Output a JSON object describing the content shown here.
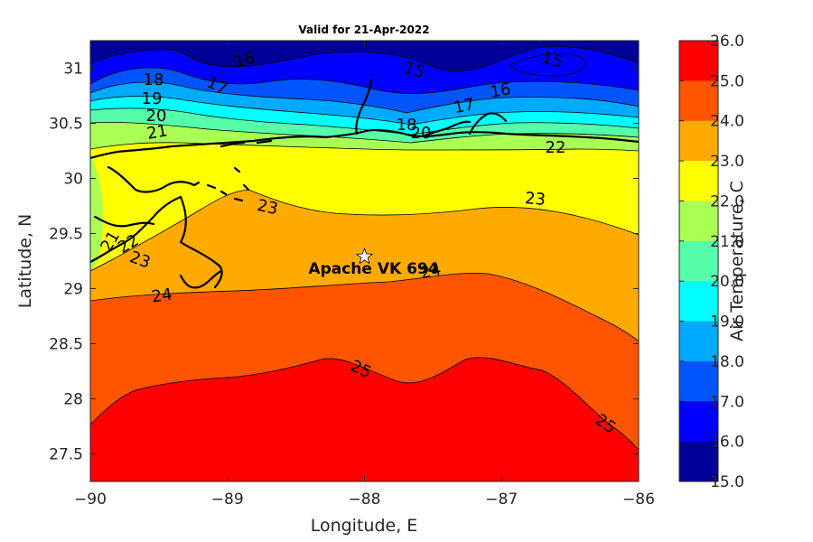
{
  "title": "Valid for 21-Apr-2022",
  "xlabel": "Longitude, E",
  "ylabel": "Latitude, N",
  "colorbar_label": "Air Temperature, C",
  "x_ticks": [
    "-90",
    "-89",
    "-88",
    "-87",
    "-86"
  ],
  "y_ticks": [
    "31",
    "30.5",
    "30",
    "29.5",
    "29",
    "28.5",
    "28",
    "27.5"
  ],
  "colorbar_ticks": [
    "26.0",
    "25.0",
    "24.0",
    "23.0",
    "22.0",
    "21.0",
    "20.0",
    "19.0",
    "18.0",
    "17.0",
    "16.0",
    "15.0"
  ],
  "colorbar_colors": [
    "#ff0000",
    "#ff5500",
    "#ffaa00",
    "#ffff00",
    "#aaff55",
    "#55ffaa",
    "#00ffff",
    "#00aaff",
    "#0055ff",
    "#0000ff",
    "#000099"
  ],
  "station": {
    "name": "Apache VK 694",
    "lon": -88.0,
    "lat": 29.29
  },
  "contour_labels": [
    "15",
    "15",
    "16",
    "16",
    "17",
    "17",
    "18",
    "18",
    "19",
    "20",
    "20",
    "21",
    "21",
    "22",
    "22",
    "23",
    "23",
    "23",
    "24",
    "24",
    "25",
    "25"
  ],
  "chart_data": {
    "type": "heatmap",
    "variable": "Air Temperature, C",
    "xlim": [
      -90,
      -86
    ],
    "ylim": [
      27.25,
      31.25
    ],
    "clim": [
      15,
      26
    ],
    "contour_levels": [
      15,
      16,
      17,
      18,
      19,
      20,
      21,
      22,
      23,
      24,
      25,
      26
    ],
    "grid": false,
    "colorbar": "right"
  }
}
